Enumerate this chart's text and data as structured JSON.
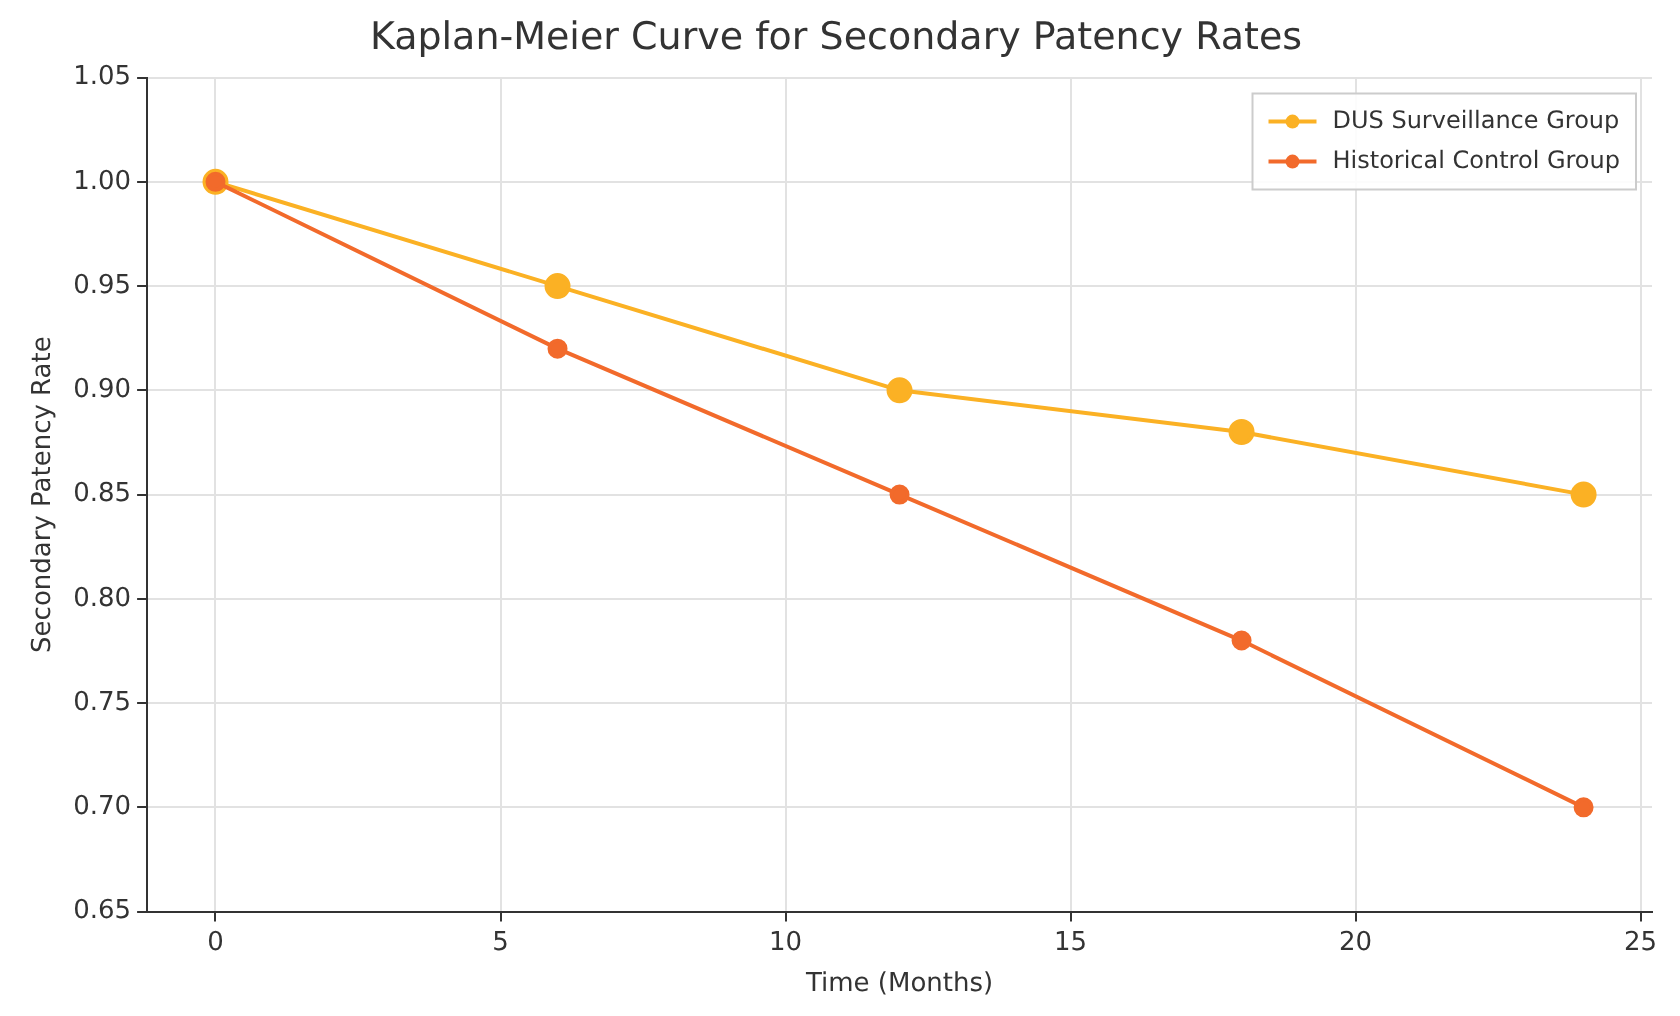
{
  "chart_data": {
    "type": "line",
    "title": "Kaplan-Meier Curve for Secondary Patency Rates",
    "xlabel": "Time (Months)",
    "ylabel": "Secondary Patency Rate",
    "x": [
      0,
      6,
      12,
      18,
      24
    ],
    "series": [
      {
        "name": "DUS Surveillance Group",
        "color": "#fbb124",
        "values": [
          1.0,
          0.95,
          0.9,
          0.88,
          0.85
        ]
      },
      {
        "name": "Historical Control Group",
        "color": "#f26a2b",
        "values": [
          1.0,
          0.92,
          0.85,
          0.78,
          0.7
        ]
      }
    ],
    "xlim": [
      -1.2,
      25.2
    ],
    "xticks": [
      0,
      5,
      10,
      15,
      20,
      25
    ],
    "ylim": [
      0.65,
      1.05
    ],
    "yticks": [
      {
        "value": 0.65,
        "label": "0.65"
      },
      {
        "value": 0.7,
        "label": "0.70"
      },
      {
        "value": 0.75,
        "label": "0.75"
      },
      {
        "value": 0.8,
        "label": "0.80"
      },
      {
        "value": 0.85,
        "label": "0.85"
      },
      {
        "value": 0.9,
        "label": "0.90"
      },
      {
        "value": 0.95,
        "label": "0.95"
      },
      {
        "value": 1.0,
        "label": "1.00"
      },
      {
        "value": 1.05,
        "label": "1.05"
      }
    ],
    "grid": true,
    "legend": "top right",
    "marker": "circle",
    "line_style": "solid"
  }
}
